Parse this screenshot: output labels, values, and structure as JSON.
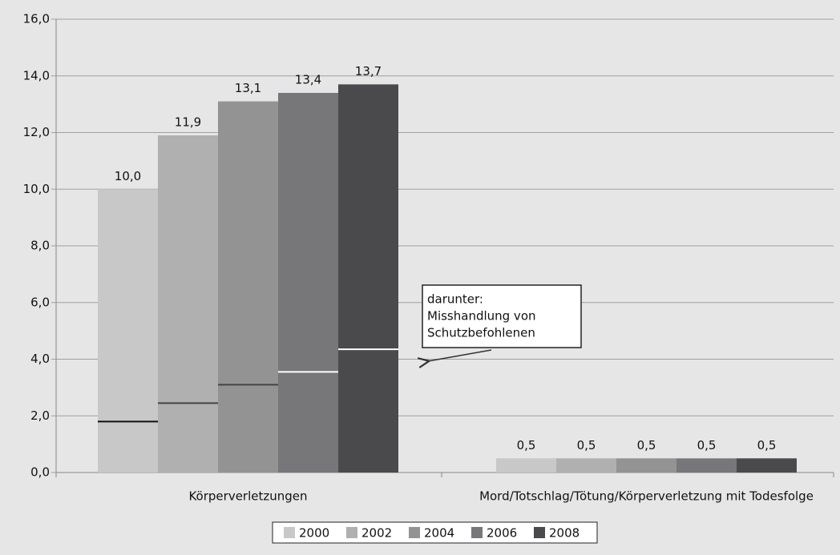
{
  "chart_data": {
    "type": "bar",
    "categories": [
      "Körperverletzungen",
      "Mord/Totschlag/Tötung/Körperverletzung mit Todesfolge"
    ],
    "series": [
      {
        "name": "2000",
        "color": "#c8c8c8",
        "values": [
          10.0,
          0.5
        ],
        "value_labels": [
          "10,0",
          "0,5"
        ],
        "sub_values": [
          1.8,
          null
        ],
        "sub_color": "#111111"
      },
      {
        "name": "2002",
        "color": "#b0b0b1",
        "values": [
          11.9,
          0.5
        ],
        "value_labels": [
          "11,9",
          "0,5"
        ],
        "sub_values": [
          2.45,
          null
        ],
        "sub_color": "#444444"
      },
      {
        "name": "2004",
        "color": "#939394",
        "values": [
          13.1,
          0.5
        ],
        "value_labels": [
          "13,1",
          "0,5"
        ],
        "sub_values": [
          3.1,
          null
        ],
        "sub_color": "#444444"
      },
      {
        "name": "2006",
        "color": "#77777a",
        "values": [
          13.4,
          0.5
        ],
        "value_labels": [
          "13,4",
          "0,5"
        ],
        "sub_values": [
          3.55,
          null
        ],
        "sub_color": "#ffffff"
      },
      {
        "name": "2008",
        "color": "#4a4a4c",
        "values": [
          13.7,
          0.5
        ],
        "value_labels": [
          "13,7",
          "0,5"
        ],
        "sub_values": [
          4.35,
          null
        ],
        "sub_color": "#ffffff"
      }
    ],
    "annotation": [
      "darunter:",
      "Misshandlung von",
      "Schutzbefohlenen"
    ],
    "ylim": [
      0,
      16
    ],
    "yticks": [
      {
        "value": 0,
        "label": "0,0"
      },
      {
        "value": 2,
        "label": "2,0"
      },
      {
        "value": 4,
        "label": "4,0"
      },
      {
        "value": 6,
        "label": "6,0"
      },
      {
        "value": 8,
        "label": "8,0"
      },
      {
        "value": 10,
        "label": "10,0"
      },
      {
        "value": 12,
        "label": "12,0"
      },
      {
        "value": 14,
        "label": "14,0"
      },
      {
        "value": 16,
        "label": "16,0"
      }
    ],
    "grid": true,
    "legend": "bottom"
  }
}
